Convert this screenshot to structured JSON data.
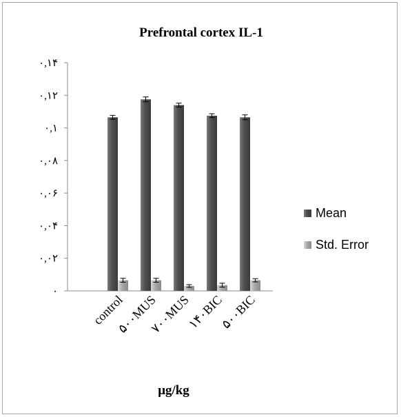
{
  "chart_data": {
    "type": "bar",
    "title": "Prefrontal cortex  IL-1",
    "xlabel": "μg/kg",
    "ylabel": "",
    "categories": [
      "control",
      "۵۰۰MUS",
      "۷۰۰MUS",
      "۱۴۰BIC",
      "۵۰۰BIC"
    ],
    "series": [
      {
        "name": "Mean",
        "values": [
          0.1065,
          0.1175,
          0.114,
          0.1075,
          0.1065
        ]
      },
      {
        "name": "Std. Error",
        "values": [
          0.0065,
          0.0065,
          0.003,
          0.0035,
          0.0065
        ]
      }
    ],
    "error_bars": [
      [
        0.0012,
        0.0015,
        0.0012,
        0.0012,
        0.0015
      ],
      [
        0.0012,
        0.0012,
        0.0008,
        0.0012,
        0.001
      ]
    ],
    "ylim": [
      0,
      0.14
    ],
    "yticks": [
      0,
      0.02,
      0.04,
      0.06,
      0.08,
      0.1,
      0.12,
      0.14
    ],
    "ytick_labels": [
      "۰",
      "۰,۰۲",
      "۰,۰۴",
      "۰,۰۶",
      "۰,۰۸",
      "۰,۱",
      "۰,۱۲",
      "۰,۱۴"
    ],
    "legend_position": "right",
    "grid": false,
    "colors": {
      "Mean": "#595959",
      "Std. Error": "#b3b3b3"
    }
  }
}
